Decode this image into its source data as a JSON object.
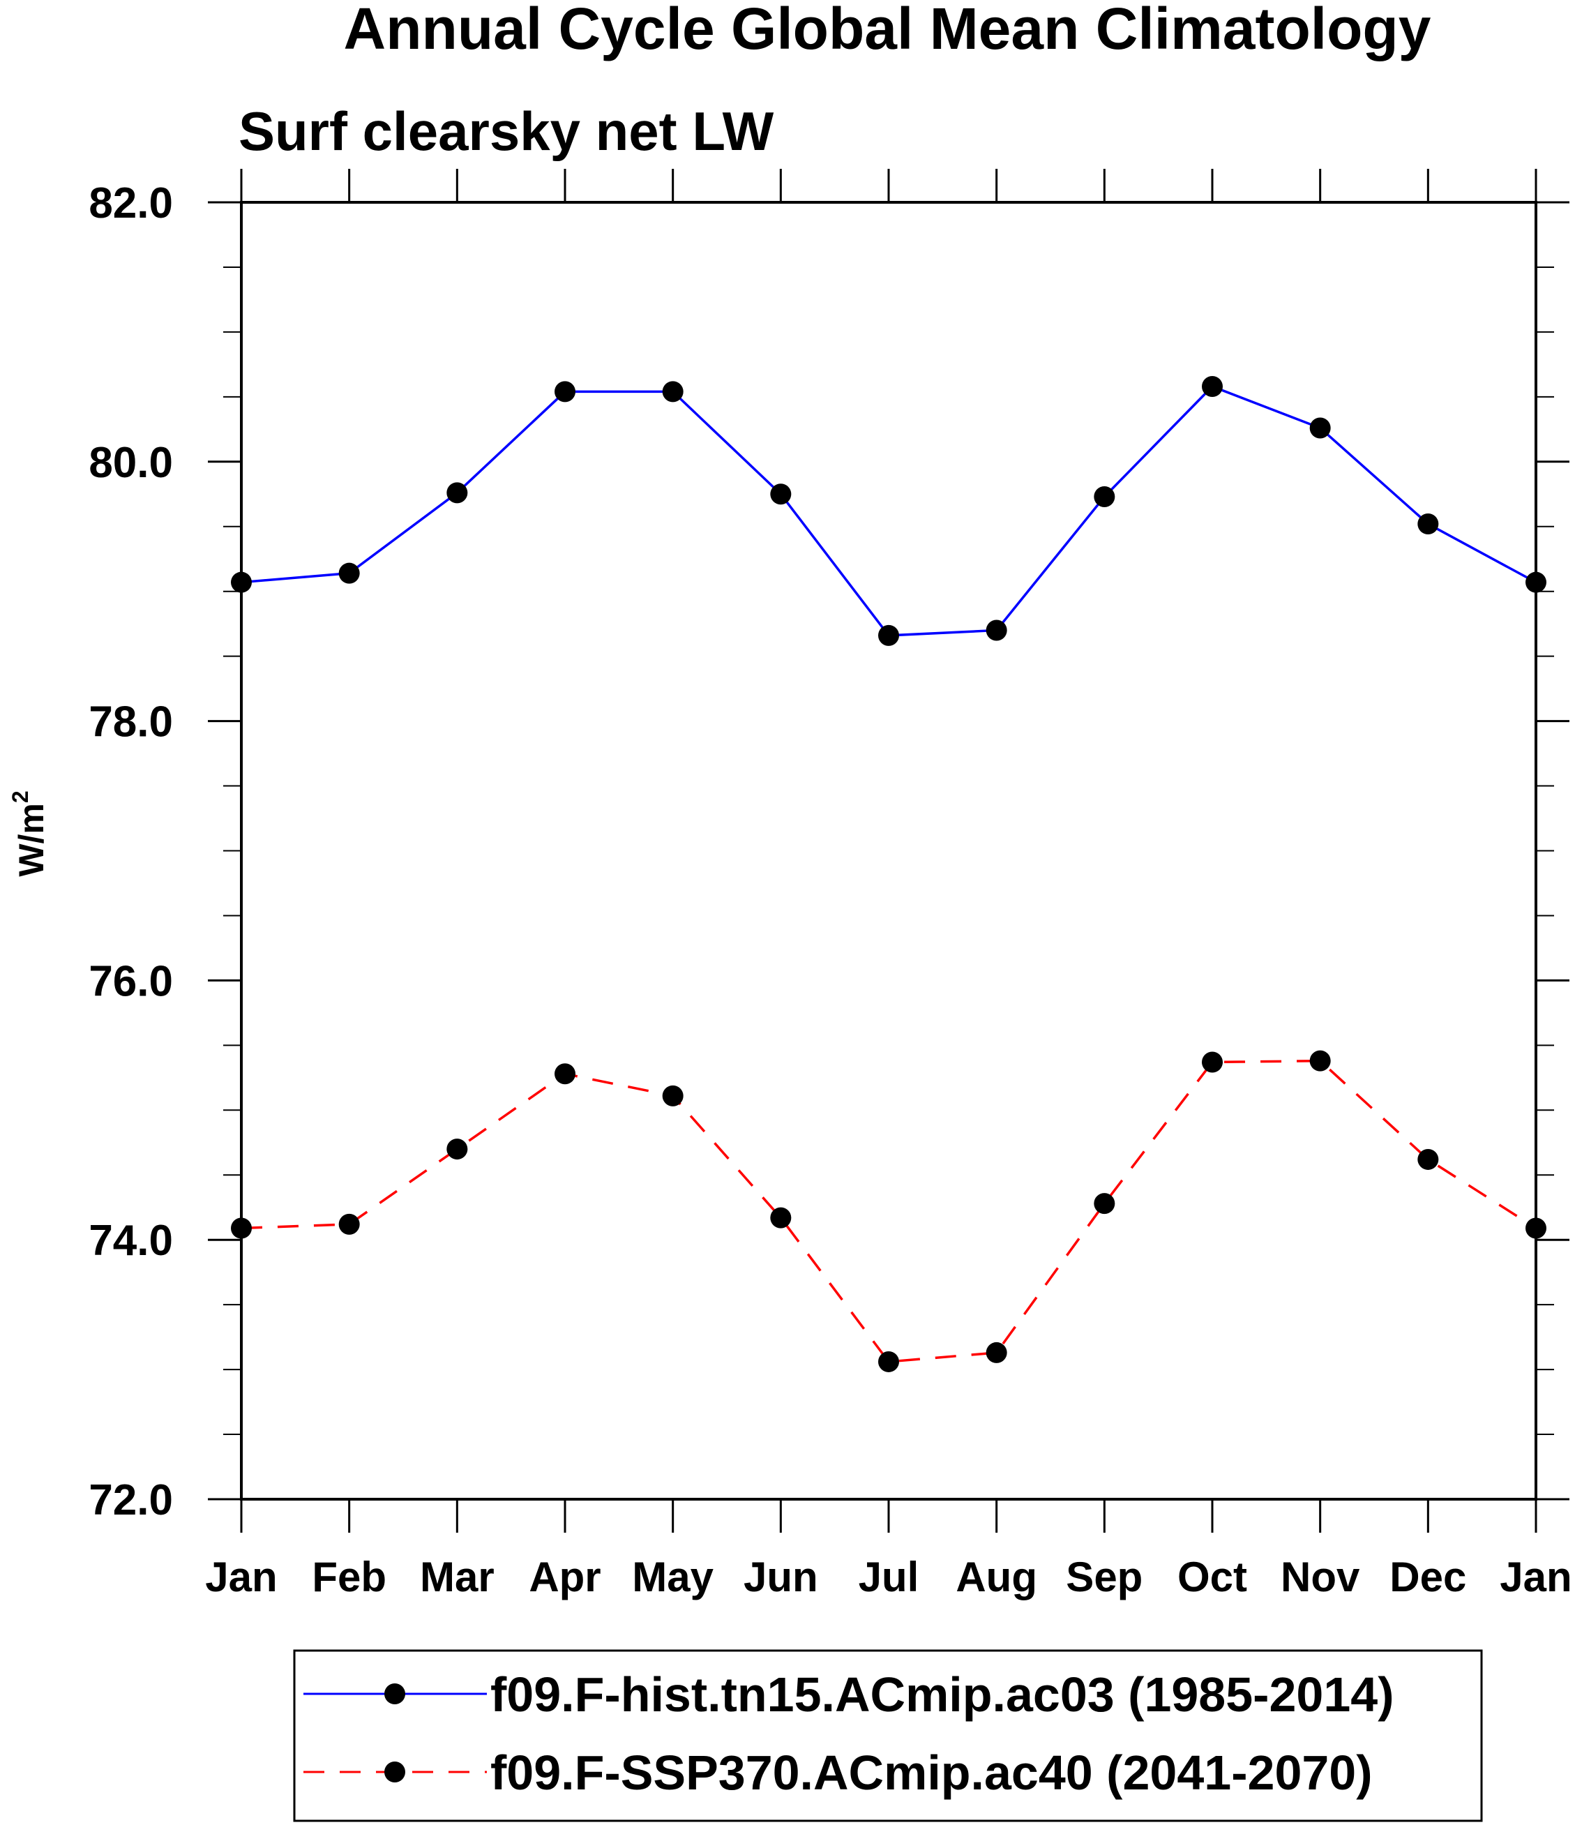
{
  "chart_data": {
    "type": "line",
    "title": "Annual Cycle Global Mean Climatology",
    "subtitle": "Surf clearsky net LW",
    "xlabel": "",
    "ylabel": "W/m",
    "ylabel_superscript": "2",
    "categories": [
      "Jan",
      "Feb",
      "Mar",
      "Apr",
      "May",
      "Jun",
      "Jul",
      "Aug",
      "Sep",
      "Oct",
      "Nov",
      "Dec",
      "Jan"
    ],
    "ylim": [
      72.0,
      82.0
    ],
    "yticks": [
      "72.0",
      "74.0",
      "76.0",
      "78.0",
      "80.0",
      "82.0"
    ],
    "grid": false,
    "legend_position": "bottom",
    "series": [
      {
        "name": "f09.F-hist.tn15.ACmip.ac03 (1985-2014)",
        "color": "#0000ff",
        "dash": "solid",
        "values": [
          79.07,
          79.14,
          79.76,
          80.54,
          80.54,
          79.75,
          78.66,
          78.7,
          79.73,
          80.58,
          80.26,
          79.52,
          79.07
        ]
      },
      {
        "name": "f09.F-SSP370.ACmip.ac40 (2041-2070)",
        "color": "#ff0000",
        "dash": "dashed",
        "values": [
          74.09,
          74.12,
          74.7,
          75.28,
          75.11,
          74.17,
          73.06,
          73.13,
          74.28,
          75.37,
          75.38,
          74.62,
          74.09
        ]
      }
    ]
  }
}
